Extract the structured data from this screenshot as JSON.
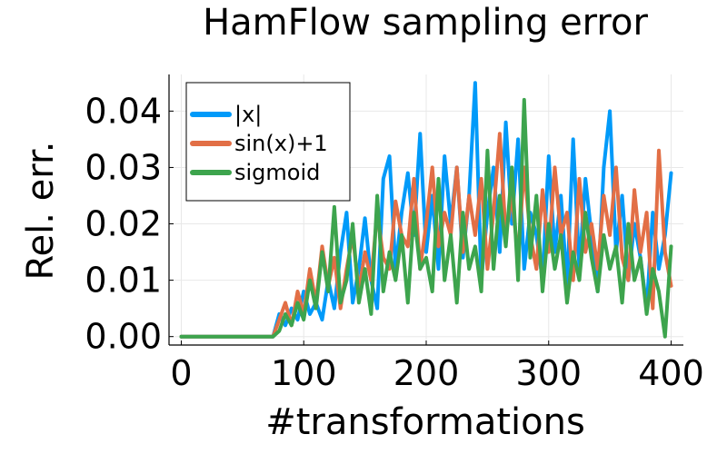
{
  "chart_data": {
    "type": "line",
    "title": "HamFlow sampling error",
    "xlabel": "#transformations",
    "ylabel": "Rel. err.",
    "xlim": [
      -10,
      410
    ],
    "ylim": [
      -0.0015,
      0.0465
    ],
    "xticks": [
      0,
      100,
      200,
      300,
      400
    ],
    "xtick_labels": [
      "0",
      "100",
      "200",
      "300",
      "400"
    ],
    "yticks": [
      0.0,
      0.01,
      0.02,
      0.03,
      0.04
    ],
    "ytick_labels": [
      "0.00",
      "0.01",
      "0.02",
      "0.03",
      "0.04"
    ],
    "grid": true,
    "legend_position": "top-left",
    "x": [
      0,
      75,
      80,
      85,
      90,
      95,
      100,
      105,
      110,
      115,
      120,
      125,
      130,
      135,
      140,
      145,
      150,
      155,
      160,
      165,
      170,
      175,
      180,
      185,
      190,
      195,
      200,
      205,
      210,
      215,
      220,
      225,
      230,
      235,
      240,
      245,
      250,
      255,
      260,
      265,
      270,
      275,
      280,
      285,
      290,
      295,
      300,
      305,
      310,
      315,
      320,
      325,
      330,
      335,
      340,
      345,
      350,
      355,
      360,
      365,
      370,
      375,
      380,
      385,
      390,
      395,
      400
    ],
    "series": [
      {
        "name": "|x|",
        "color": "#009af9",
        "values": [
          0.0,
          0.0,
          0.004,
          0.002,
          0.005,
          0.003,
          0.008,
          0.004,
          0.006,
          0.003,
          0.01,
          0.005,
          0.015,
          0.022,
          0.006,
          0.012,
          0.021,
          0.01,
          0.005,
          0.028,
          0.032,
          0.012,
          0.022,
          0.029,
          0.018,
          0.036,
          0.015,
          0.025,
          0.012,
          0.032,
          0.02,
          0.03,
          0.014,
          0.025,
          0.045,
          0.01,
          0.022,
          0.03,
          0.015,
          0.038,
          0.02,
          0.035,
          0.012,
          0.022,
          0.018,
          0.01,
          0.032,
          0.015,
          0.025,
          0.009,
          0.035,
          0.012,
          0.028,
          0.018,
          0.008,
          0.03,
          0.04,
          0.015,
          0.025,
          0.01,
          0.02,
          0.014,
          0.005,
          0.022,
          0.012,
          0.018,
          0.029
        ]
      },
      {
        "name": "sin(x)+1",
        "color": "#e26f46",
        "values": [
          0.0,
          0.0,
          0.003,
          0.006,
          0.002,
          0.008,
          0.004,
          0.012,
          0.006,
          0.016,
          0.009,
          0.014,
          0.005,
          0.012,
          0.018,
          0.008,
          0.015,
          0.01,
          0.022,
          0.014,
          0.012,
          0.024,
          0.018,
          0.016,
          0.028,
          0.012,
          0.02,
          0.03,
          0.016,
          0.022,
          0.018,
          0.03,
          0.015,
          0.025,
          0.018,
          0.028,
          0.012,
          0.022,
          0.036,
          0.018,
          0.025,
          0.014,
          0.03,
          0.018,
          0.012,
          0.026,
          0.015,
          0.03,
          0.018,
          0.022,
          0.01,
          0.028,
          0.015,
          0.02,
          0.012,
          0.025,
          0.018,
          0.03,
          0.014,
          0.01,
          0.026,
          0.015,
          0.022,
          0.005,
          0.033,
          0.015,
          0.009
        ]
      },
      {
        "name": "sigmoid",
        "color": "#3da44d",
        "values": [
          0.0,
          0.0,
          0.001,
          0.004,
          0.002,
          0.006,
          0.003,
          0.01,
          0.005,
          0.015,
          0.008,
          0.023,
          0.006,
          0.01,
          0.02,
          0.006,
          0.012,
          0.004,
          0.025,
          0.008,
          0.015,
          0.01,
          0.018,
          0.006,
          0.022,
          0.012,
          0.014,
          0.008,
          0.028,
          0.01,
          0.018,
          0.006,
          0.022,
          0.012,
          0.016,
          0.008,
          0.033,
          0.012,
          0.025,
          0.016,
          0.03,
          0.01,
          0.042,
          0.014,
          0.025,
          0.008,
          0.02,
          0.012,
          0.018,
          0.006,
          0.015,
          0.01,
          0.022,
          0.014,
          0.008,
          0.018,
          0.012,
          0.016,
          0.006,
          0.02,
          0.01,
          0.014,
          0.004,
          0.012,
          0.008,
          0.0,
          0.016
        ]
      }
    ]
  }
}
